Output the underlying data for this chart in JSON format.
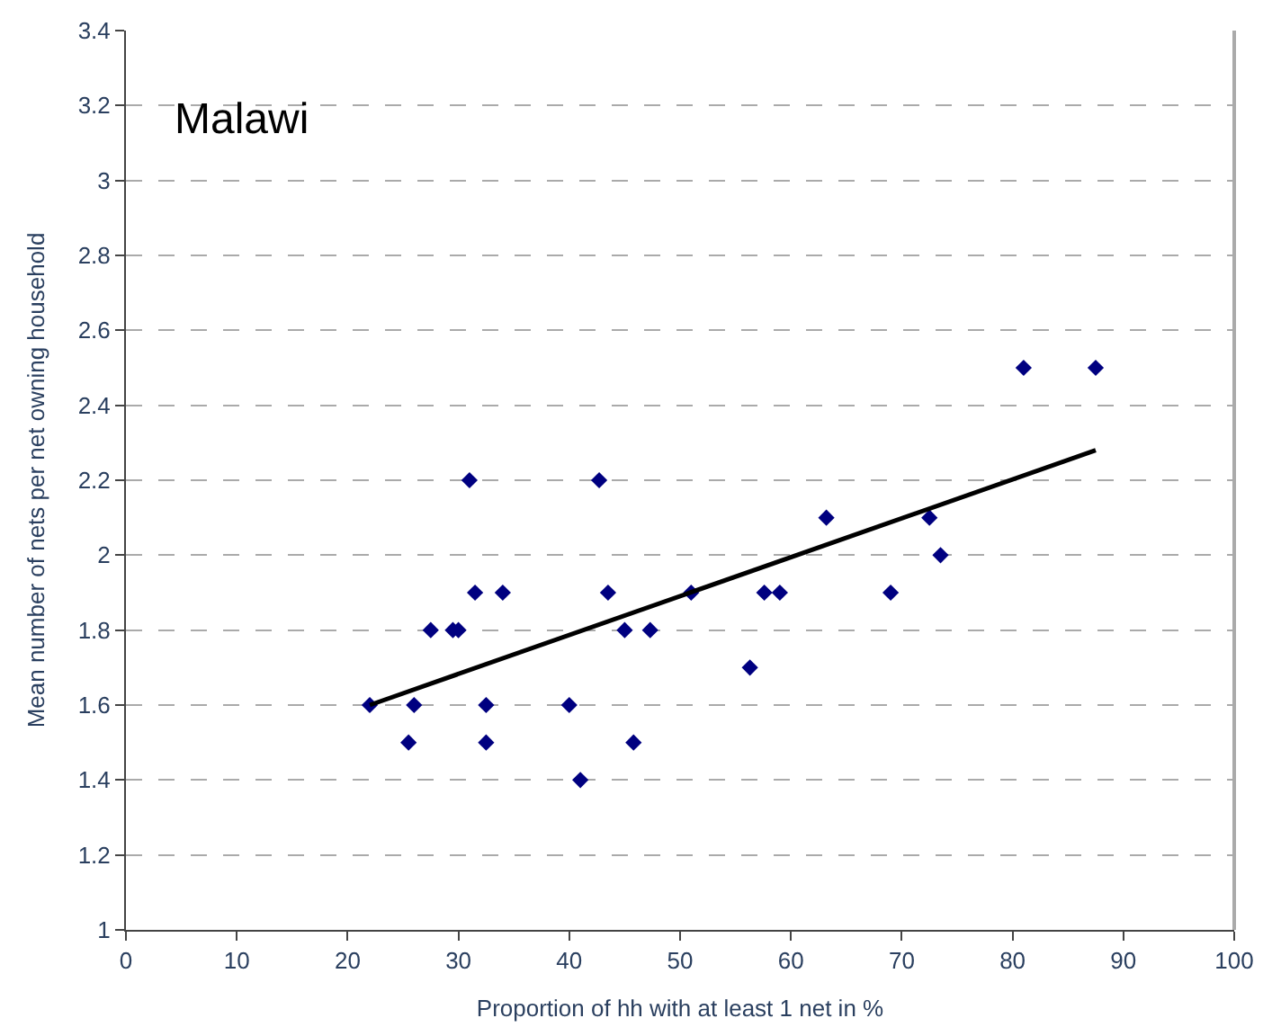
{
  "chart_data": {
    "type": "scatter",
    "title": "Malawi",
    "xlabel": "Proportion of hh with at least 1 net in %",
    "ylabel": "Mean number of nets per net owning household",
    "xlim": [
      0,
      100
    ],
    "xticks": [
      0,
      10,
      20,
      30,
      40,
      50,
      60,
      70,
      80,
      90,
      100
    ],
    "ylim": [
      1,
      3.4
    ],
    "yticks": [
      1,
      1.2,
      1.4,
      1.6,
      1.8,
      2,
      2.2,
      2.4,
      2.6,
      2.8,
      3,
      3.2,
      3.4
    ],
    "grid": "y",
    "marker": "diamond",
    "series": [
      {
        "color": "#000080",
        "x": [
          22,
          25.5,
          26,
          27.5,
          29.5,
          30,
          31,
          31.5,
          32.5,
          32.5,
          34,
          40,
          41,
          42.7,
          43.5,
          45,
          45.8,
          47.3,
          51,
          56.3,
          57.6,
          59,
          63.2,
          69,
          72.5,
          73.5,
          81,
          87.5
        ],
        "values": [
          1.6,
          1.5,
          1.6,
          1.8,
          1.8,
          1.8,
          2.2,
          1.9,
          1.6,
          1.5,
          1.9,
          1.6,
          1.4,
          2.2,
          1.9,
          1.8,
          1.5,
          1.8,
          1.9,
          1.7,
          1.9,
          1.9,
          2.1,
          1.9,
          2.1,
          2.0,
          2.5,
          2.5
        ]
      },
      {
        "type": "line",
        "color": "#000000",
        "x": [
          22,
          87.5
        ],
        "values": [
          1.6,
          2.28
        ],
        "line_style": "solid",
        "marker": "none"
      }
    ]
  }
}
